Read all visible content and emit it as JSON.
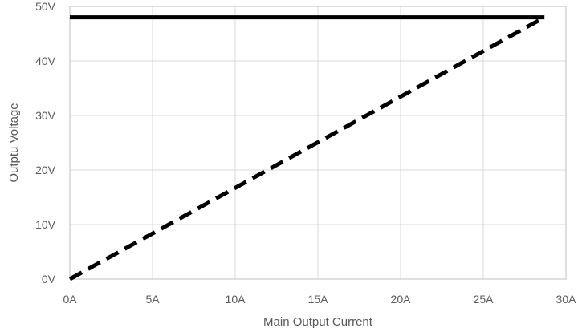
{
  "chart_data": {
    "type": "line",
    "title": "",
    "xlabel": "Main Output Current",
    "ylabel": "Outptu Voltage",
    "xlim": [
      0,
      30
    ],
    "ylim": [
      0,
      50
    ],
    "x_ticks": [
      0,
      5,
      10,
      15,
      20,
      25,
      30
    ],
    "y_ticks": [
      0,
      10,
      20,
      30,
      40,
      50
    ],
    "x_tick_labels": [
      "0A",
      "5A",
      "10A",
      "15A",
      "20A",
      "25A",
      "30A"
    ],
    "y_tick_labels": [
      "0V",
      "10V",
      "20V",
      "30V",
      "40V",
      "50V"
    ],
    "grid": "vertical-and-horizontal",
    "legend": "none",
    "series": [
      {
        "style": "solid",
        "color": "#000000",
        "x": [
          0,
          28.7
        ],
        "y": [
          48,
          48
        ]
      },
      {
        "style": "dashed",
        "color": "#000000",
        "x": [
          0,
          28.7
        ],
        "y": [
          0,
          48
        ]
      }
    ]
  }
}
